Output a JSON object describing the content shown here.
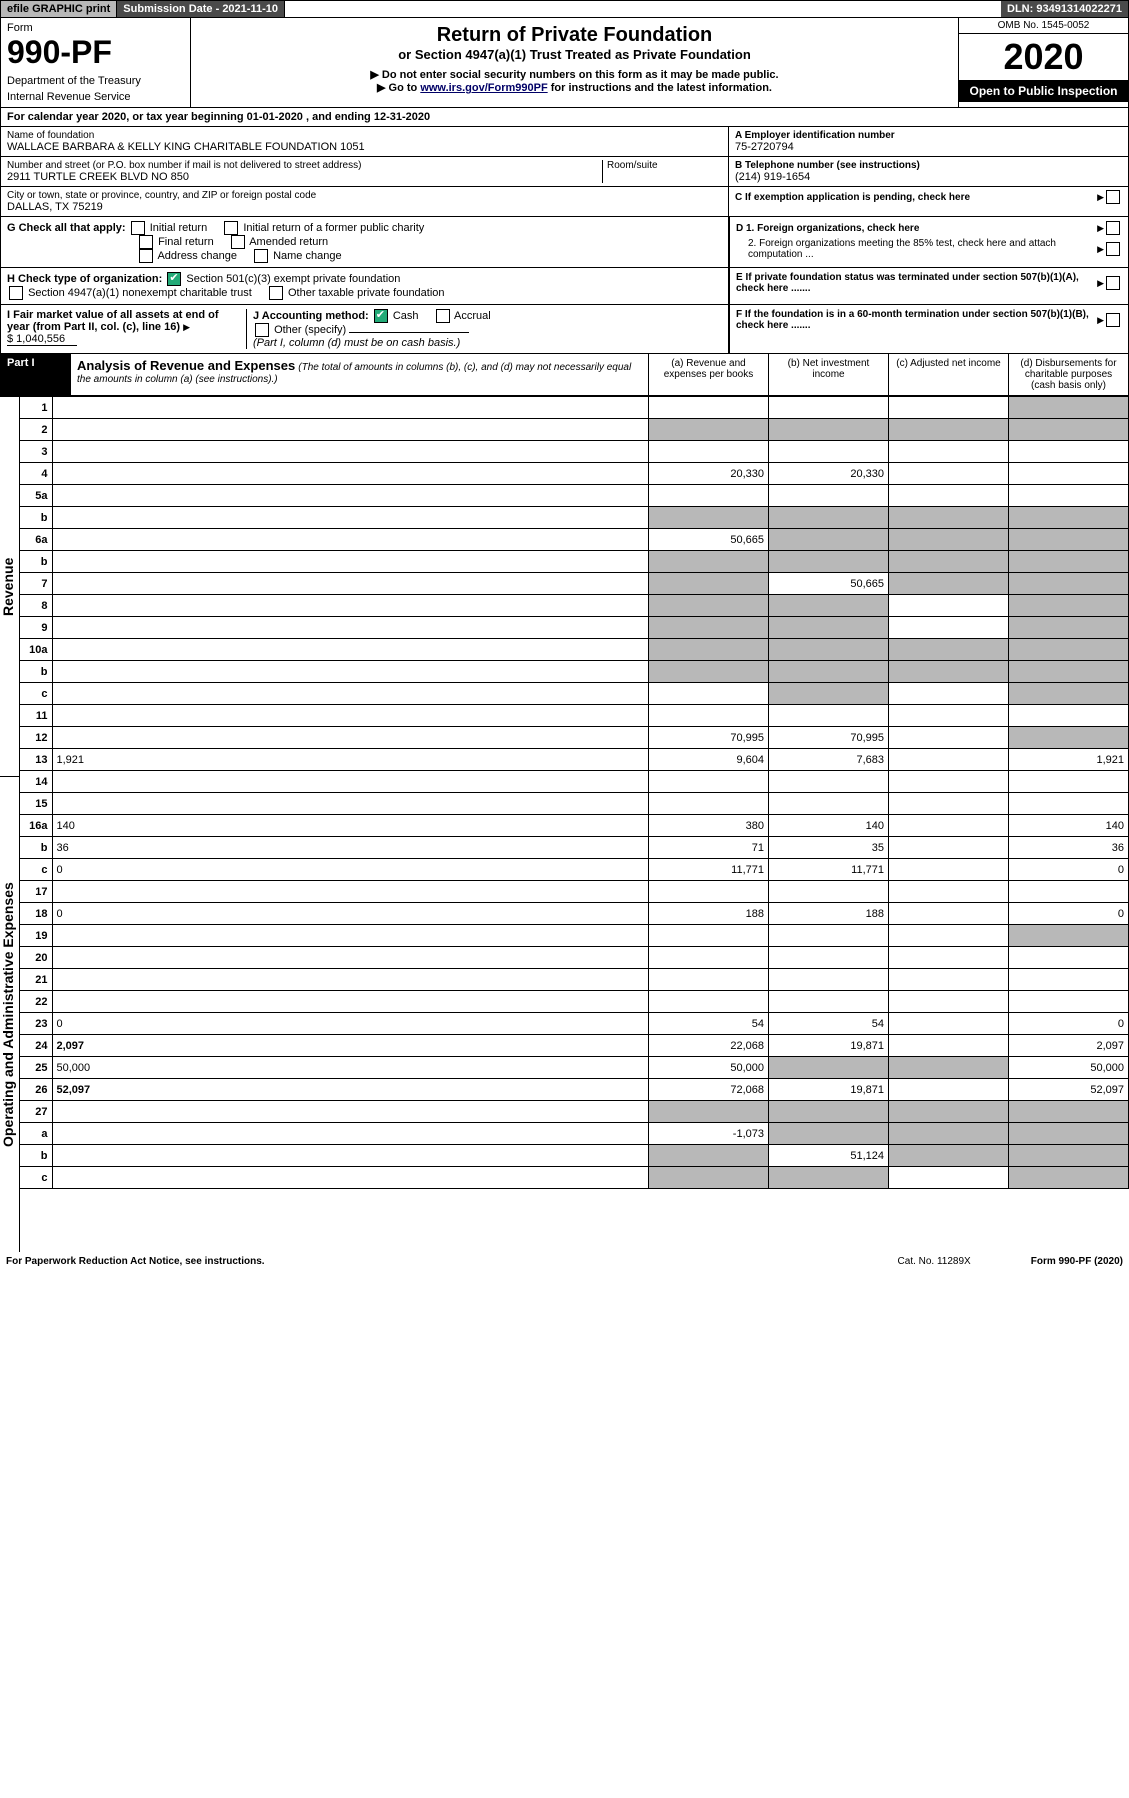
{
  "topbar": {
    "efile": "efile GRAPHIC print",
    "subdate": "Submission Date - 2021-11-10",
    "dln": "DLN: 93491314022271"
  },
  "header": {
    "form_label": "Form",
    "form_no": "990-PF",
    "dept": "Department of the Treasury",
    "irs": "Internal Revenue Service",
    "title": "Return of Private Foundation",
    "subtitle": "or Section 4947(a)(1) Trust Treated as Private Foundation",
    "instr1": "▶ Do not enter social security numbers on this form as it may be made public.",
    "instr2_pre": "▶ Go to ",
    "instr2_link": "www.irs.gov/Form990PF",
    "instr2_post": " for instructions and the latest information.",
    "omb": "OMB No. 1545-0052",
    "year": "2020",
    "open_pub": "Open to Public Inspection"
  },
  "cal_year": {
    "pre": "For calendar year 2020, or tax year beginning ",
    "begin": "01-01-2020",
    "mid": " , and ending ",
    "end": "12-31-2020"
  },
  "info": {
    "name_label": "Name of foundation",
    "name": "WALLACE BARBARA & KELLY KING CHARITABLE FOUNDATION 1051",
    "addr_label": "Number and street (or P.O. box number if mail is not delivered to street address)",
    "room_label": "Room/suite",
    "addr": "2911 TURTLE CREEK BLVD NO 850",
    "city_label": "City or town, state or province, country, and ZIP or foreign postal code",
    "city": "DALLAS, TX  75219",
    "ein_label": "A Employer identification number",
    "ein": "75-2720794",
    "tel_label": "B Telephone number (see instructions)",
    "tel": "(214) 919-1654",
    "c_label": "C If exemption application is pending, check here"
  },
  "checks": {
    "g_label": "G Check all that apply:",
    "g_opts": [
      "Initial return",
      "Initial return of a former public charity",
      "Final return",
      "Amended return",
      "Address change",
      "Name change"
    ],
    "h_label": "H Check type of organization:",
    "h_opt1": "Section 501(c)(3) exempt private foundation",
    "h_opt2": "Section 4947(a)(1) nonexempt charitable trust",
    "h_opt3": "Other taxable private foundation",
    "i_label": "I Fair market value of all assets at end of year (from Part II, col. (c), line 16)",
    "i_val": "$  1,040,556",
    "j_label": "J Accounting method:",
    "j_opts": [
      "Cash",
      "Accrual"
    ],
    "j_other": "Other (specify)",
    "j_note": "(Part I, column (d) must be on cash basis.)",
    "d1": "D 1. Foreign organizations, check here",
    "d2": "2. Foreign organizations meeting the 85% test, check here and attach computation ...",
    "e": "E  If private foundation status was terminated under section 507(b)(1)(A), check here .......",
    "f": "F  If the foundation is in a 60-month termination under section 507(b)(1)(B), check here ......."
  },
  "part1": {
    "label": "Part I",
    "title": "Analysis of Revenue and Expenses",
    "sub": "(The total of amounts in columns (b), (c), and (d) may not necessarily equal the amounts in column (a) (see instructions).)",
    "col_a": "(a) Revenue and expenses per books",
    "col_b": "(b) Net investment income",
    "col_c": "(c) Adjusted net income",
    "col_d": "(d) Disbursements for charitable purposes (cash basis only)"
  },
  "side_labels": {
    "rev": "Revenue",
    "exp": "Operating and Administrative Expenses"
  },
  "rows": [
    {
      "n": "1",
      "d": "",
      "a": "",
      "b": "",
      "c": "",
      "shade": [
        "d"
      ]
    },
    {
      "n": "2",
      "d": "",
      "a": "",
      "b": "",
      "c": "",
      "shade": [
        "a",
        "b",
        "c",
        "d"
      ],
      "checkmark": true
    },
    {
      "n": "3",
      "d": "",
      "a": "",
      "b": "",
      "c": "",
      "shade": []
    },
    {
      "n": "4",
      "d": "",
      "a": "20,330",
      "b": "20,330",
      "c": "",
      "shade": []
    },
    {
      "n": "5a",
      "d": "",
      "a": "",
      "b": "",
      "c": "",
      "shade": []
    },
    {
      "n": "b",
      "d": "",
      "a": "",
      "b": "",
      "c": "",
      "shade": [
        "a",
        "b",
        "c",
        "d"
      ]
    },
    {
      "n": "6a",
      "d": "",
      "a": "50,665",
      "b": "",
      "c": "",
      "shade": [
        "b",
        "c",
        "d"
      ]
    },
    {
      "n": "b",
      "d": "",
      "a": "",
      "b": "",
      "c": "",
      "shade": [
        "a",
        "b",
        "c",
        "d"
      ]
    },
    {
      "n": "7",
      "d": "",
      "a": "",
      "b": "50,665",
      "c": "",
      "shade": [
        "a",
        "c",
        "d"
      ]
    },
    {
      "n": "8",
      "d": "",
      "a": "",
      "b": "",
      "c": "",
      "shade": [
        "a",
        "b",
        "d"
      ]
    },
    {
      "n": "9",
      "d": "",
      "a": "",
      "b": "",
      "c": "",
      "shade": [
        "a",
        "b",
        "d"
      ]
    },
    {
      "n": "10a",
      "d": "",
      "a": "",
      "b": "",
      "c": "",
      "shade": [
        "a",
        "b",
        "c",
        "d"
      ]
    },
    {
      "n": "b",
      "d": "",
      "a": "",
      "b": "",
      "c": "",
      "shade": [
        "a",
        "b",
        "c",
        "d"
      ]
    },
    {
      "n": "c",
      "d": "",
      "a": "",
      "b": "",
      "c": "",
      "shade": [
        "b",
        "d"
      ]
    },
    {
      "n": "11",
      "d": "",
      "a": "",
      "b": "",
      "c": "",
      "shade": []
    },
    {
      "n": "12",
      "d": "",
      "a": "70,995",
      "b": "70,995",
      "c": "",
      "shade": [
        "d"
      ],
      "bold": true
    },
    {
      "n": "13",
      "d": "1,921",
      "a": "9,604",
      "b": "7,683",
      "c": "",
      "shade": []
    },
    {
      "n": "14",
      "d": "",
      "a": "",
      "b": "",
      "c": "",
      "shade": []
    },
    {
      "n": "15",
      "d": "",
      "a": "",
      "b": "",
      "c": "",
      "shade": []
    },
    {
      "n": "16a",
      "d": "140",
      "a": "380",
      "b": "140",
      "c": "",
      "shade": []
    },
    {
      "n": "b",
      "d": "36",
      "a": "71",
      "b": "35",
      "c": "",
      "shade": []
    },
    {
      "n": "c",
      "d": "0",
      "a": "11,771",
      "b": "11,771",
      "c": "",
      "shade": []
    },
    {
      "n": "17",
      "d": "",
      "a": "",
      "b": "",
      "c": "",
      "shade": []
    },
    {
      "n": "18",
      "d": "0",
      "a": "188",
      "b": "188",
      "c": "",
      "shade": []
    },
    {
      "n": "19",
      "d": "",
      "a": "",
      "b": "",
      "c": "",
      "shade": [
        "d"
      ]
    },
    {
      "n": "20",
      "d": "",
      "a": "",
      "b": "",
      "c": "",
      "shade": []
    },
    {
      "n": "21",
      "d": "",
      "a": "",
      "b": "",
      "c": "",
      "shade": []
    },
    {
      "n": "22",
      "d": "",
      "a": "",
      "b": "",
      "c": "",
      "shade": []
    },
    {
      "n": "23",
      "d": "0",
      "a": "54",
      "b": "54",
      "c": "",
      "shade": []
    },
    {
      "n": "24",
      "d": "2,097",
      "a": "22,068",
      "b": "19,871",
      "c": "",
      "shade": [],
      "bold": true
    },
    {
      "n": "25",
      "d": "50,000",
      "a": "50,000",
      "b": "",
      "c": "",
      "shade": [
        "b",
        "c"
      ]
    },
    {
      "n": "26",
      "d": "52,097",
      "a": "72,068",
      "b": "19,871",
      "c": "",
      "shade": [],
      "bold": true
    },
    {
      "n": "27",
      "d": "",
      "a": "",
      "b": "",
      "c": "",
      "shade": [
        "a",
        "b",
        "c",
        "d"
      ]
    },
    {
      "n": "a",
      "d": "",
      "a": "-1,073",
      "b": "",
      "c": "",
      "shade": [
        "b",
        "c",
        "d"
      ],
      "bold": true
    },
    {
      "n": "b",
      "d": "",
      "a": "",
      "b": "51,124",
      "c": "",
      "shade": [
        "a",
        "c",
        "d"
      ],
      "bold": true
    },
    {
      "n": "c",
      "d": "",
      "a": "",
      "b": "",
      "c": "",
      "shade": [
        "a",
        "b",
        "d"
      ],
      "bold": true
    }
  ],
  "footer": {
    "pra": "For Paperwork Reduction Act Notice, see instructions.",
    "cat": "Cat. No. 11289X",
    "form": "Form 990-PF (2020)"
  }
}
